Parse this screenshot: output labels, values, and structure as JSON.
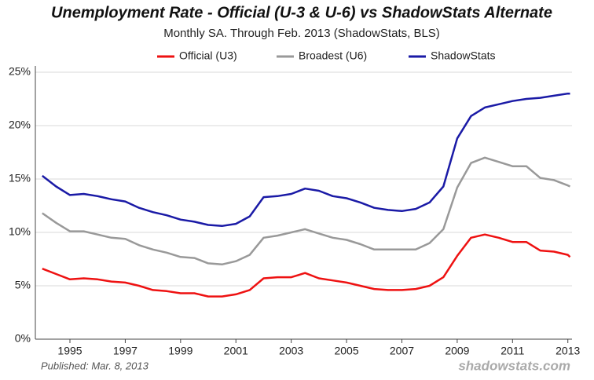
{
  "chart_data": {
    "type": "line",
    "title": "Unemployment Rate - Official (U-3 & U-6) vs ShadowStats Alternate",
    "subtitle": "Monthly SA. Through Feb. 2013  (ShadowStats, BLS)",
    "published": "Published: Mar. 8, 2013",
    "watermark": "shadowstats.com",
    "x": [
      1994.0,
      1994.5,
      1995.0,
      1995.5,
      1996.0,
      1996.5,
      1997.0,
      1997.5,
      1998.0,
      1998.5,
      1999.0,
      1999.5,
      2000.0,
      2000.5,
      2001.0,
      2001.5,
      2002.0,
      2002.5,
      2003.0,
      2003.5,
      2004.0,
      2004.5,
      2005.0,
      2005.5,
      2006.0,
      2006.5,
      2007.0,
      2007.5,
      2008.0,
      2008.5,
      2009.0,
      2009.5,
      2010.0,
      2010.5,
      2011.0,
      2011.5,
      2012.0,
      2012.5,
      2013.0,
      2013.08
    ],
    "series": [
      {
        "name": "Official (U3)",
        "color": "#ee1111",
        "values": [
          6.6,
          6.1,
          5.6,
          5.7,
          5.6,
          5.4,
          5.3,
          5.0,
          4.6,
          4.5,
          4.3,
          4.3,
          4.0,
          4.0,
          4.2,
          4.6,
          5.7,
          5.8,
          5.8,
          6.2,
          5.7,
          5.5,
          5.3,
          5.0,
          4.7,
          4.6,
          4.6,
          4.7,
          5.0,
          5.8,
          7.8,
          9.5,
          9.8,
          9.5,
          9.1,
          9.1,
          8.3,
          8.2,
          7.9,
          7.7
        ]
      },
      {
        "name": "Broadest (U6)",
        "color": "#999999",
        "values": [
          11.8,
          10.9,
          10.1,
          10.1,
          9.8,
          9.5,
          9.4,
          8.8,
          8.4,
          8.1,
          7.7,
          7.6,
          7.1,
          7.0,
          7.3,
          7.9,
          9.5,
          9.7,
          10.0,
          10.3,
          9.9,
          9.5,
          9.3,
          8.9,
          8.4,
          8.4,
          8.4,
          8.4,
          9.0,
          10.3,
          14.2,
          16.5,
          17.0,
          16.6,
          16.2,
          16.2,
          15.1,
          14.9,
          14.4,
          14.3
        ]
      },
      {
        "name": "ShadowStats",
        "color": "#1a1aa6",
        "values": [
          15.3,
          14.3,
          13.5,
          13.6,
          13.4,
          13.1,
          12.9,
          12.3,
          11.9,
          11.6,
          11.2,
          11.0,
          10.7,
          10.6,
          10.8,
          11.5,
          13.3,
          13.4,
          13.6,
          14.1,
          13.9,
          13.4,
          13.2,
          12.8,
          12.3,
          12.1,
          12.0,
          12.2,
          12.8,
          14.3,
          18.8,
          20.9,
          21.7,
          22.0,
          22.3,
          22.5,
          22.6,
          22.8,
          23.0,
          23.0
        ]
      }
    ],
    "xlim": [
      1993.75,
      2013.15
    ],
    "xticks": [
      1995,
      1997,
      1999,
      2001,
      2003,
      2005,
      2007,
      2009,
      2011,
      2013
    ],
    "ylim": [
      0,
      25
    ],
    "yticks": [
      {
        "value": 0,
        "label": "0%"
      },
      {
        "value": 5,
        "label": "5%"
      },
      {
        "value": 10,
        "label": "10%"
      },
      {
        "value": 15,
        "label": "15%"
      },
      {
        "value": 20,
        "label": "20%"
      },
      {
        "value": 25,
        "label": "25%"
      }
    ],
    "grid": true
  }
}
